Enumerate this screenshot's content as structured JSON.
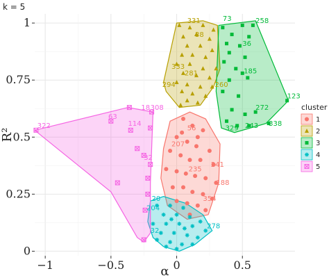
{
  "subtitle": "k = 5",
  "chart_data": {
    "type": "scatter",
    "xlabel": "α",
    "ylabel": "R²",
    "xlim": [
      -1.08,
      0.9
    ],
    "ylim": [
      -0.02,
      1.04
    ],
    "x_ticks": [
      {
        "value": -1,
        "label": "−1"
      },
      {
        "value": -0.5,
        "label": "−0.5"
      },
      {
        "value": 0,
        "label": "0"
      },
      {
        "value": 0.5,
        "label": "0.5"
      }
    ],
    "y_ticks": [
      {
        "value": 0,
        "label": "0"
      },
      {
        "value": 0.25,
        "label": "0.25"
      },
      {
        "value": 0.5,
        "label": "0.5"
      },
      {
        "value": 0.75,
        "label": "0.75"
      },
      {
        "value": 1,
        "label": "1"
      }
    ],
    "grid": true,
    "legend": {
      "title": "cluster",
      "placement": "right"
    },
    "clusters": [
      {
        "name": "1",
        "color": "#F8766D",
        "shape": "circle",
        "hull": [
          [
            -0.1,
            0.45
          ],
          [
            -0.05,
            0.57
          ],
          [
            0.1,
            0.61
          ],
          [
            0.22,
            0.58
          ],
          [
            0.33,
            0.47
          ],
          [
            0.32,
            0.3
          ],
          [
            0.24,
            0.16
          ],
          [
            0.08,
            0.14
          ],
          [
            -0.07,
            0.2
          ],
          [
            -0.12,
            0.32
          ]
        ],
        "points": [
          [
            0.05,
            0.58
          ],
          [
            0.12,
            0.55
          ],
          [
            0.2,
            0.53
          ],
          [
            0.0,
            0.5
          ],
          [
            0.08,
            0.48
          ],
          [
            0.15,
            0.46
          ],
          [
            0.25,
            0.44
          ],
          [
            -0.05,
            0.44
          ],
          [
            0.03,
            0.42
          ],
          [
            0.1,
            0.4
          ],
          [
            0.18,
            0.4
          ],
          [
            0.28,
            0.38
          ],
          [
            -0.08,
            0.36
          ],
          [
            0.0,
            0.35
          ],
          [
            0.07,
            0.34
          ],
          [
            0.14,
            0.33
          ],
          [
            0.22,
            0.32
          ],
          [
            0.3,
            0.3
          ],
          [
            -0.03,
            0.28
          ],
          [
            0.05,
            0.28
          ],
          [
            0.12,
            0.26
          ],
          [
            0.2,
            0.25
          ],
          [
            0.27,
            0.23
          ],
          [
            0.0,
            0.22
          ],
          [
            0.08,
            0.21
          ],
          [
            0.16,
            0.2
          ],
          [
            0.22,
            0.18
          ],
          [
            0.1,
            0.16
          ],
          [
            0.04,
            0.52
          ],
          [
            0.16,
            0.5
          ]
        ],
        "labels": [
          {
            "text": "207",
            "x": -0.04,
            "y": 0.46
          },
          {
            "text": "241",
            "x": 0.26,
            "y": 0.37
          },
          {
            "text": "188",
            "x": 0.3,
            "y": 0.29
          },
          {
            "text": "354",
            "x": 0.2,
            "y": 0.22
          },
          {
            "text": "235",
            "x": 0.09,
            "y": 0.35
          },
          {
            "text": "56",
            "x": 0.08,
            "y": 0.53
          }
        ]
      },
      {
        "name": "2",
        "color": "#B79F00",
        "shape": "triangle",
        "hull": [
          [
            0.0,
            1.0
          ],
          [
            0.2,
            1.01
          ],
          [
            0.31,
            0.99
          ],
          [
            0.33,
            0.8
          ],
          [
            0.28,
            0.72
          ],
          [
            0.18,
            0.64
          ],
          [
            0.02,
            0.63
          ],
          [
            -0.08,
            0.7
          ],
          [
            -0.1,
            0.74
          ]
        ],
        "points": [
          [
            0.02,
            0.99
          ],
          [
            0.1,
            0.98
          ],
          [
            0.2,
            0.99
          ],
          [
            0.28,
            0.97
          ],
          [
            0.05,
            0.94
          ],
          [
            0.15,
            0.95
          ],
          [
            0.25,
            0.93
          ],
          [
            0.08,
            0.9
          ],
          [
            0.18,
            0.9
          ],
          [
            0.27,
            0.88
          ],
          [
            0.04,
            0.86
          ],
          [
            0.12,
            0.86
          ],
          [
            0.22,
            0.85
          ],
          [
            0.0,
            0.82
          ],
          [
            0.1,
            0.82
          ],
          [
            0.2,
            0.8
          ],
          [
            0.3,
            0.8
          ],
          [
            0.05,
            0.78
          ],
          [
            0.15,
            0.77
          ],
          [
            0.25,
            0.76
          ],
          [
            0.0,
            0.74
          ],
          [
            0.08,
            0.73
          ],
          [
            0.18,
            0.72
          ],
          [
            0.27,
            0.72
          ],
          [
            0.04,
            0.7
          ],
          [
            0.12,
            0.69
          ],
          [
            0.22,
            0.68
          ],
          [
            0.08,
            0.66
          ],
          [
            0.16,
            0.65
          ],
          [
            0.03,
            0.64
          ]
        ],
        "labels": [
          {
            "text": "294",
            "x": -0.11,
            "y": 0.72
          },
          {
            "text": "333",
            "x": -0.04,
            "y": 0.8
          },
          {
            "text": "281",
            "x": 0.06,
            "y": 0.77
          },
          {
            "text": "260",
            "x": 0.29,
            "y": 0.72
          },
          {
            "text": "331",
            "x": 0.08,
            "y": 1.0
          },
          {
            "text": "38",
            "x": 0.14,
            "y": 0.94
          }
        ]
      },
      {
        "name": "3",
        "color": "#00BA38",
        "shape": "square",
        "hull": [
          [
            0.32,
            0.99
          ],
          [
            0.6,
            1.01
          ],
          [
            0.85,
            0.66
          ],
          [
            0.68,
            0.56
          ],
          [
            0.44,
            0.52
          ],
          [
            0.34,
            0.54
          ],
          [
            0.3,
            0.7
          ]
        ],
        "points": [
          [
            0.35,
            0.98
          ],
          [
            0.5,
            0.99
          ],
          [
            0.58,
            0.99
          ],
          [
            0.42,
            0.95
          ],
          [
            0.55,
            0.94
          ],
          [
            0.38,
            0.91
          ],
          [
            0.48,
            0.9
          ],
          [
            0.4,
            0.87
          ],
          [
            0.52,
            0.85
          ],
          [
            0.36,
            0.83
          ],
          [
            0.45,
            0.8
          ],
          [
            0.5,
            0.78
          ],
          [
            0.54,
            0.76
          ],
          [
            0.4,
            0.75
          ],
          [
            0.35,
            0.7
          ],
          [
            0.47,
            0.68
          ],
          [
            0.84,
            0.66
          ],
          [
            0.6,
            0.61
          ],
          [
            0.52,
            0.6
          ],
          [
            0.7,
            0.56
          ],
          [
            0.46,
            0.55
          ],
          [
            0.55,
            0.55
          ],
          [
            0.38,
            0.57
          ],
          [
            0.42,
            0.62
          ]
        ],
        "labels": [
          {
            "text": "73",
            "x": 0.35,
            "y": 1.01
          },
          {
            "text": "258",
            "x": 0.6,
            "y": 1.0
          },
          {
            "text": "36",
            "x": 0.5,
            "y": 0.9
          },
          {
            "text": "185",
            "x": 0.51,
            "y": 0.78
          },
          {
            "text": "272",
            "x": 0.6,
            "y": 0.62
          },
          {
            "text": "123",
            "x": 0.84,
            "y": 0.67
          },
          {
            "text": "338",
            "x": 0.7,
            "y": 0.55
          },
          {
            "text": "329",
            "x": 0.37,
            "y": 0.53
          },
          {
            "text": "243",
            "x": 0.52,
            "y": 0.54
          }
        ]
      },
      {
        "name": "4",
        "color": "#00BFC4",
        "shape": "star",
        "hull": [
          [
            -0.2,
            0.22
          ],
          [
            -0.1,
            0.24
          ],
          [
            0.07,
            0.21
          ],
          [
            0.2,
            0.16
          ],
          [
            0.27,
            0.09
          ],
          [
            0.14,
            0.03
          ],
          [
            0.02,
            0.0
          ],
          [
            -0.1,
            0.02
          ],
          [
            -0.18,
            0.06
          ],
          [
            -0.22,
            0.13
          ]
        ],
        "points": [
          [
            -0.15,
            0.2
          ],
          [
            -0.05,
            0.2
          ],
          [
            0.05,
            0.19
          ],
          [
            -0.1,
            0.16
          ],
          [
            0.0,
            0.16
          ],
          [
            0.1,
            0.15
          ],
          [
            0.18,
            0.13
          ],
          [
            -0.18,
            0.12
          ],
          [
            -0.08,
            0.12
          ],
          [
            0.02,
            0.12
          ],
          [
            0.12,
            0.11
          ],
          [
            0.22,
            0.09
          ],
          [
            -0.12,
            0.08
          ],
          [
            -0.02,
            0.08
          ],
          [
            0.08,
            0.07
          ],
          [
            0.16,
            0.06
          ],
          [
            -0.15,
            0.05
          ],
          [
            -0.05,
            0.04
          ],
          [
            0.04,
            0.03
          ],
          [
            0.12,
            0.03
          ],
          [
            0.0,
            0.01
          ],
          [
            -0.08,
            0.02
          ],
          [
            0.06,
            0.1
          ],
          [
            -0.04,
            0.14
          ]
        ],
        "labels": [
          {
            "text": "20",
            "x": -0.19,
            "y": 0.22
          },
          {
            "text": "204",
            "x": -0.23,
            "y": 0.18
          },
          {
            "text": "32",
            "x": -0.2,
            "y": 0.08
          },
          {
            "text": "278",
            "x": 0.23,
            "y": 0.1
          }
        ]
      },
      {
        "name": "5",
        "color": "#F564E3",
        "shape": "square-cross",
        "hull": [
          [
            -1.08,
            0.53
          ],
          [
            -0.37,
            0.63
          ],
          [
            -0.18,
            0.61
          ],
          [
            -0.2,
            0.3
          ],
          [
            -0.2,
            0.08
          ],
          [
            -0.25,
            0.04
          ],
          [
            -0.3,
            0.06
          ],
          [
            -0.5,
            0.26
          ]
        ],
        "points": [
          [
            -1.07,
            0.53
          ],
          [
            -0.36,
            0.63
          ],
          [
            -0.19,
            0.61
          ],
          [
            -0.5,
            0.57
          ],
          [
            -0.35,
            0.53
          ],
          [
            -0.2,
            0.54
          ],
          [
            -0.25,
            0.42
          ],
          [
            -0.2,
            0.38
          ],
          [
            -0.22,
            0.32
          ],
          [
            -0.22,
            0.25
          ],
          [
            -0.24,
            0.18
          ],
          [
            -0.25,
            0.05
          ],
          [
            -0.45,
            0.3
          ],
          [
            -0.3,
            0.45
          ]
        ],
        "labels": [
          {
            "text": "322",
            "x": -1.06,
            "y": 0.54
          },
          {
            "text": "18",
            "x": -0.27,
            "y": 0.62
          },
          {
            "text": "308",
            "x": -0.2,
            "y": 0.62
          },
          {
            "text": "63",
            "x": -0.52,
            "y": 0.58
          },
          {
            "text": "114",
            "x": -0.37,
            "y": 0.55
          },
          {
            "text": "32",
            "x": -0.25,
            "y": 0.4
          }
        ]
      }
    ]
  }
}
